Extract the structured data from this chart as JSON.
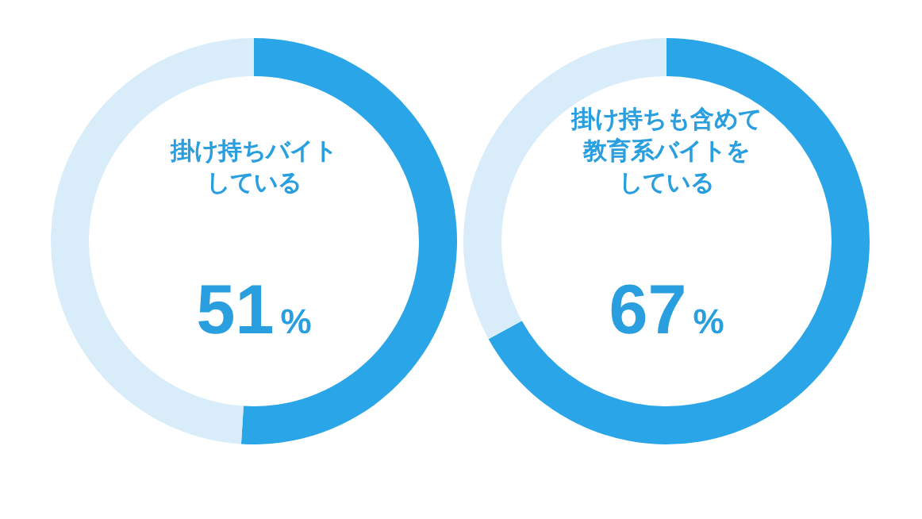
{
  "chart_data": [
    {
      "type": "donut",
      "title": "掛け持ちバイト",
      "annotations": [
        "している"
      ],
      "categories": [
        null,
        null
      ],
      "values": [
        51,
        49
      ],
      "colors": [
        "#2aa6e8",
        "#d8edf9"
      ],
      "value_labels": [
        "51%",
        null
      ]
    },
    {
      "type": "donut",
      "title": "掛け持ちも含めて",
      "annotations": [
        "教育系バイトを",
        "している"
      ],
      "categories": [
        null,
        null
      ],
      "values": [
        67,
        33
      ],
      "colors": [
        "#2aa6e8",
        "#d8edf9"
      ],
      "value_labels": [
        "67%",
        null
      ]
    }
  ]
}
